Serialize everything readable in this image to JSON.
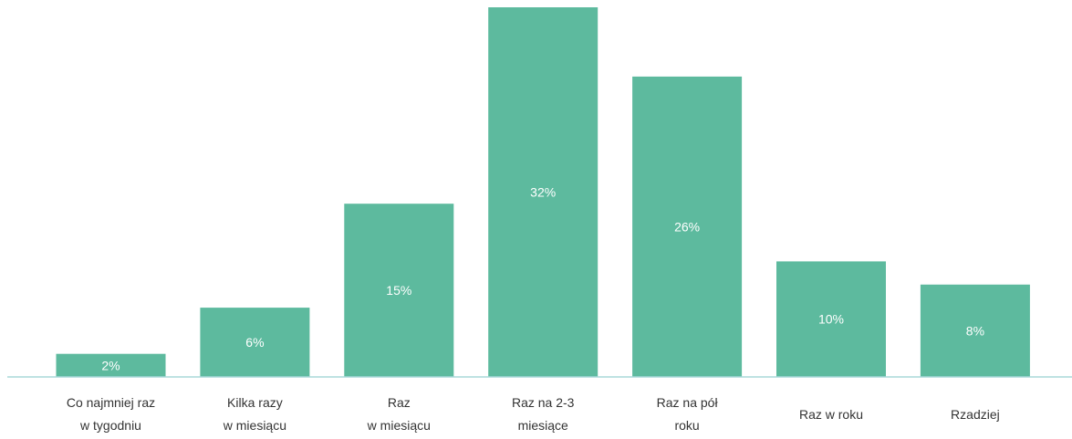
{
  "chart_data": {
    "type": "bar",
    "title": "",
    "xlabel": "",
    "ylabel": "",
    "categories": [
      [
        "Co najmniej raz",
        "w tygodniu"
      ],
      [
        "Kilka razy",
        "w miesiącu"
      ],
      [
        "Raz",
        "w miesiącu"
      ],
      [
        "Raz na 2-3",
        "miesiące"
      ],
      [
        "Raz na pół",
        "roku"
      ],
      [
        "Raz w roku"
      ],
      [
        "Rzadziej"
      ]
    ],
    "values": [
      2,
      6,
      15,
      32,
      26,
      10,
      8
    ],
    "value_labels": [
      "2%",
      "6%",
      "15%",
      "32%",
      "26%",
      "10%",
      "8%"
    ],
    "ylim": [
      0,
      32
    ],
    "grid": false,
    "colors": {
      "bar": "#5dba9e",
      "axis": "#a8d8d8",
      "bar_label": "#ffffff",
      "category_label": "#333333"
    }
  }
}
